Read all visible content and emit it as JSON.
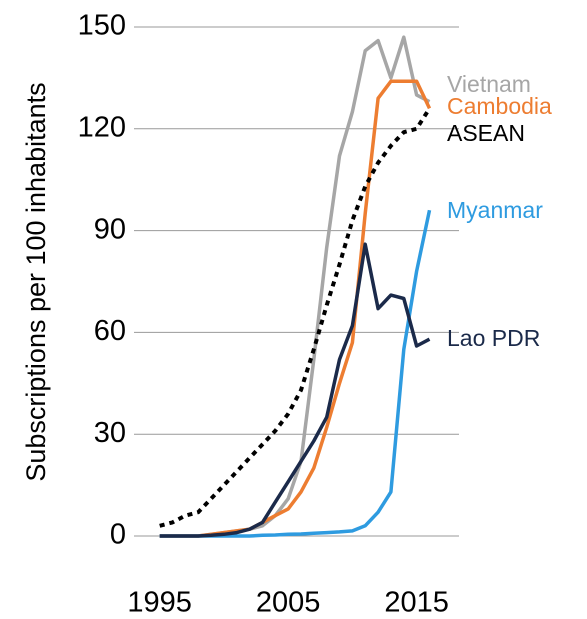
{
  "chart_data": {
    "type": "line",
    "y_label": "Subscriptions per 100 inhabitants",
    "x": [
      1995,
      1996,
      1997,
      1998,
      1999,
      2000,
      2001,
      2002,
      2003,
      2004,
      2005,
      2006,
      2007,
      2008,
      2009,
      2010,
      2011,
      2012,
      2013,
      2014,
      2015,
      2016
    ],
    "xlim": [
      1993,
      2018.3
    ],
    "xticks": [
      1995,
      2005,
      2015
    ],
    "ylim": [
      0,
      150
    ],
    "yticks": [
      0,
      30,
      60,
      90,
      120,
      150
    ],
    "grid": true,
    "series": [
      {
        "name": "Vietnam",
        "color": "#a6a6a6",
        "style": "solid",
        "values": [
          0,
          0,
          0,
          0,
          0.5,
          1,
          1.5,
          2,
          3,
          6,
          11,
          22,
          52,
          85,
          112,
          125,
          143,
          146,
          135,
          147,
          130,
          128
        ]
      },
      {
        "name": "Cambodia",
        "color": "#ed7d31",
        "style": "solid",
        "values": [
          0,
          0,
          0,
          0,
          0.5,
          1,
          1.5,
          2,
          4,
          6,
          8,
          13,
          20,
          32,
          45,
          57,
          95,
          129,
          134,
          134,
          134,
          126
        ]
      },
      {
        "name": "ASEAN",
        "color": "#000000",
        "style": "dotted",
        "values": [
          3,
          4,
          6,
          7,
          11,
          15,
          19,
          23,
          27,
          31,
          36,
          43,
          55,
          68,
          80,
          93,
          103,
          110,
          115,
          119,
          120,
          126
        ]
      },
      {
        "name": "Myanmar",
        "color": "#2e9be0",
        "style": "solid",
        "values": [
          0,
          0,
          0,
          0,
          0,
          0,
          0,
          0,
          0.2,
          0.3,
          0.5,
          0.6,
          0.8,
          1,
          1.2,
          1.5,
          3,
          7,
          13,
          55,
          78,
          96
        ]
      },
      {
        "name": "Lao PDR",
        "color": "#1b2a4a",
        "style": "solid",
        "values": [
          0,
          0,
          0,
          0,
          0.2,
          0.5,
          1,
          2,
          4,
          10,
          16,
          22,
          28,
          35,
          52,
          62,
          86,
          67,
          71,
          70,
          56,
          58
        ]
      }
    ]
  }
}
